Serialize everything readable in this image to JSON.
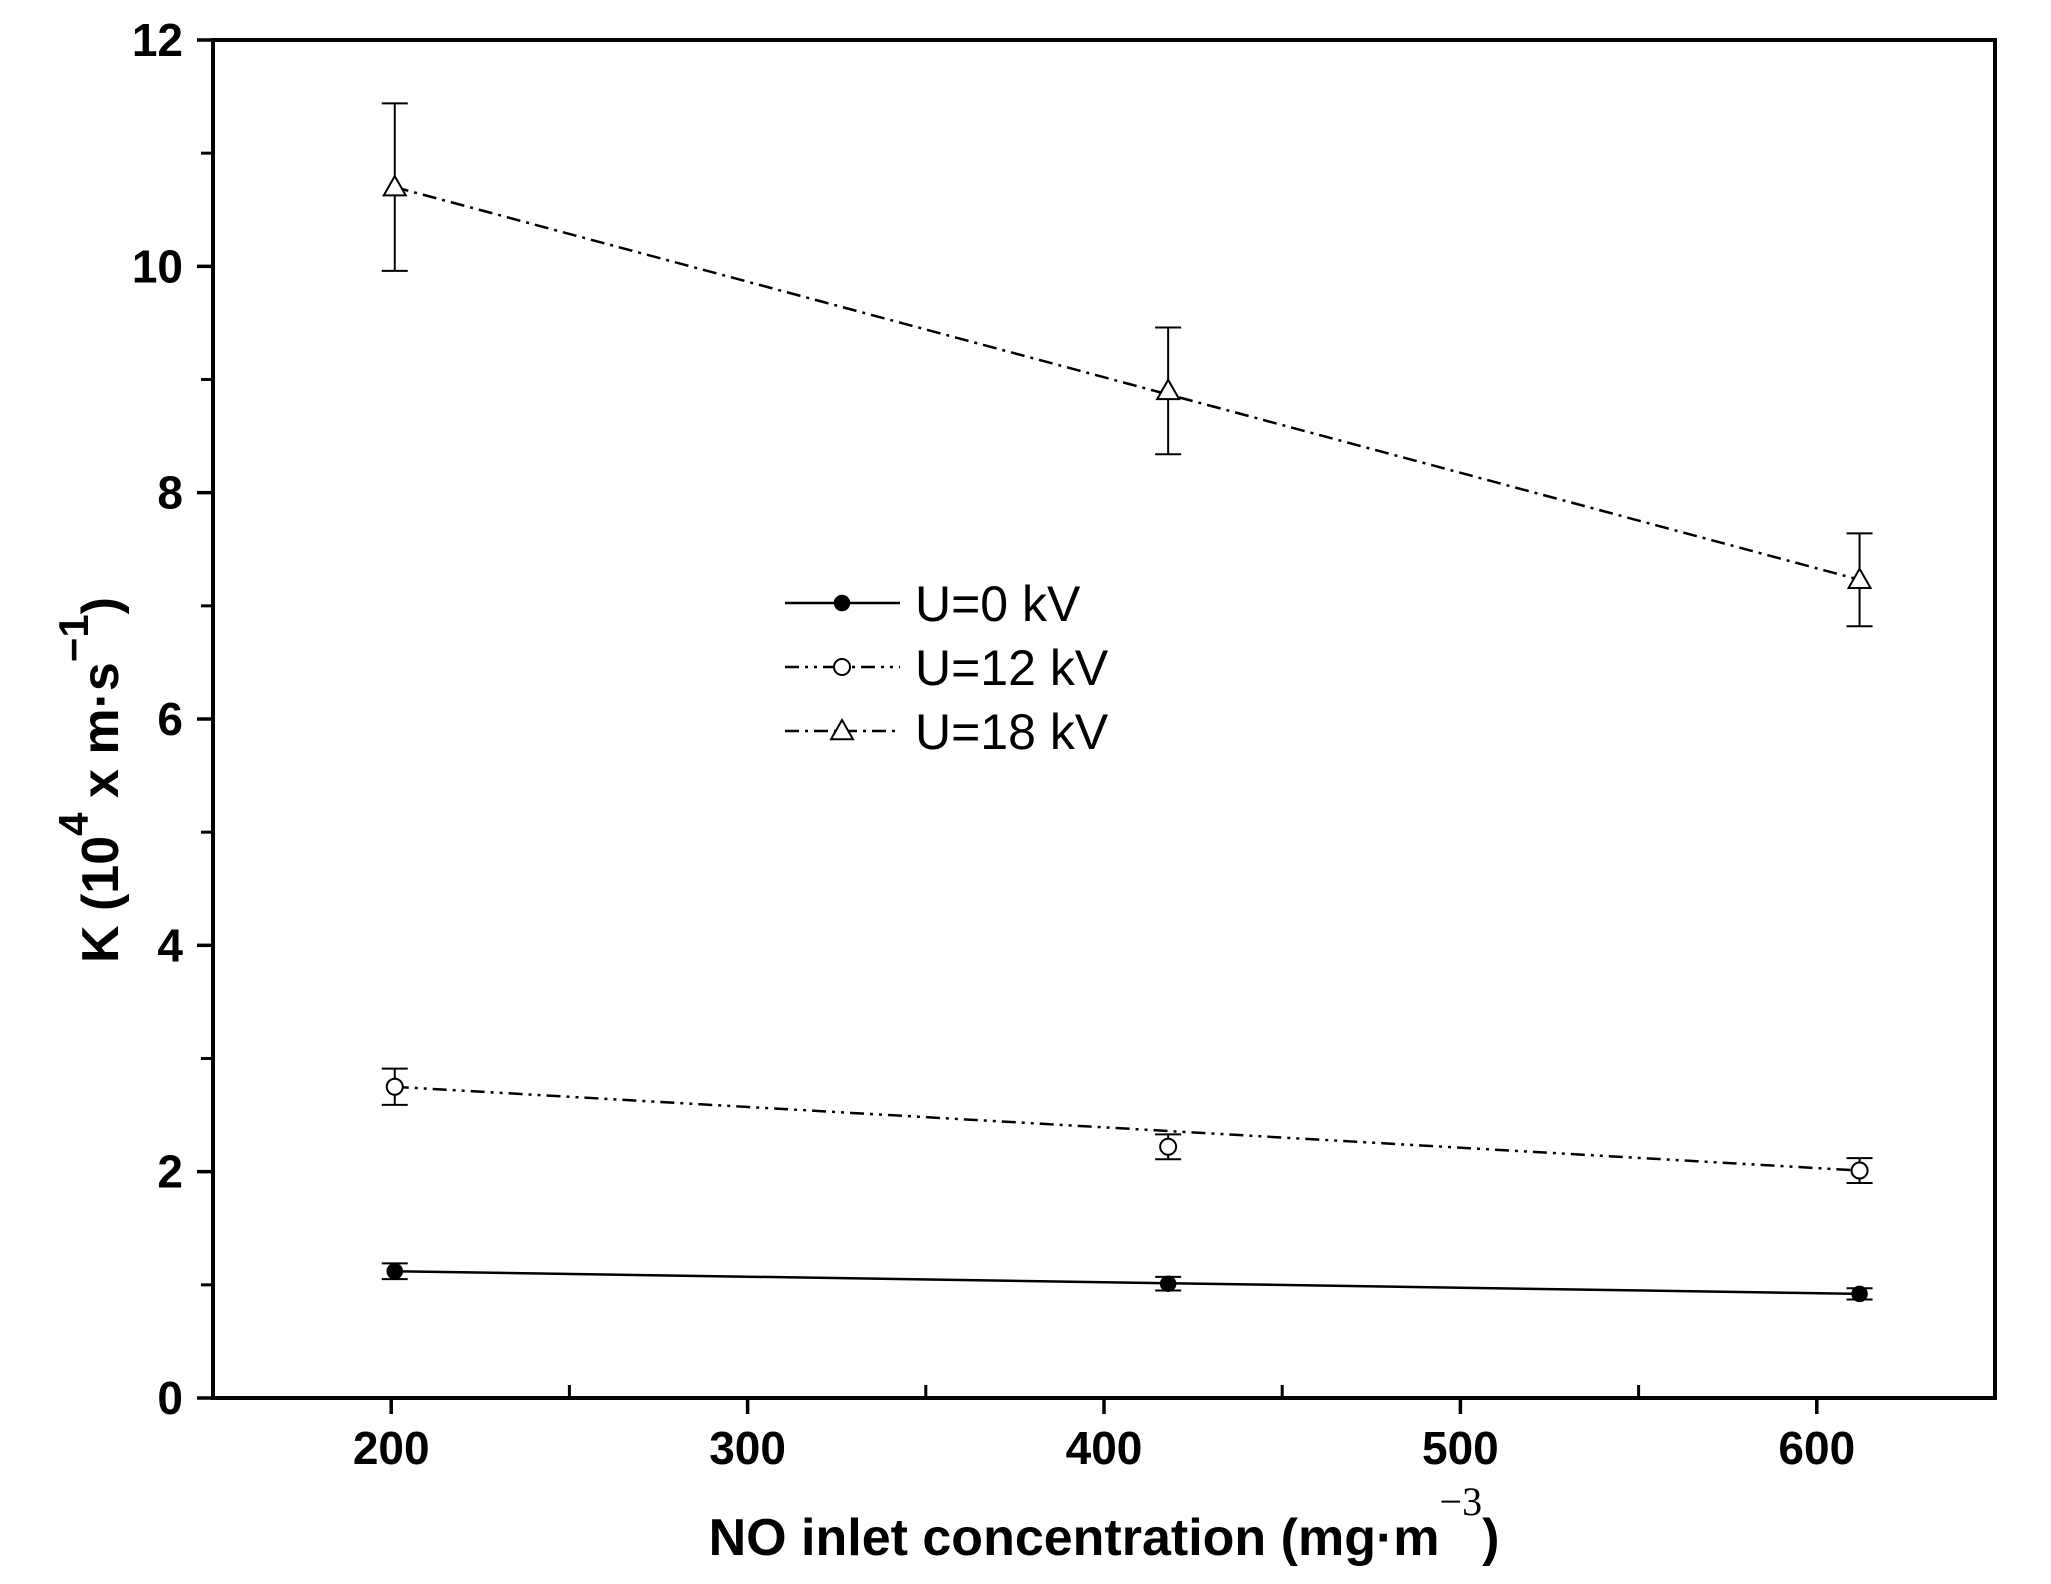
{
  "chart_data": {
    "type": "line",
    "title": "",
    "xlabel": {
      "main": "NO inlet concentration (mg·m",
      "superscript": "−3",
      "close": ")"
    },
    "ylabel": {
      "main": "K (10",
      "superscript": "4",
      "middle": " x m·s",
      "superscript2": "−1",
      "close": ")"
    },
    "xlim": [
      150,
      650
    ],
    "ylim": [
      0,
      12
    ],
    "x_ticks": [
      200,
      300,
      400,
      500,
      600
    ],
    "x_tick_labels": [
      "200",
      "300",
      "400",
      "500",
      "600"
    ],
    "y_ticks": [
      0,
      2,
      4,
      6,
      8,
      10,
      12
    ],
    "y_tick_labels": [
      "0",
      "2",
      "4",
      "6",
      "8",
      "10",
      "12"
    ],
    "grid": false,
    "legend_position": "center",
    "series": [
      {
        "name": "U=0 kV",
        "marker": "filled-circle",
        "line_style": "solid",
        "x": [
          201,
          418,
          612
        ],
        "y": [
          1.12,
          1.01,
          0.92
        ],
        "error": [
          0.07,
          0.06,
          0.05
        ],
        "fit": [
          1.12,
          0.92
        ]
      },
      {
        "name": "U=12 kV",
        "marker": "open-circle",
        "line_style": "dash-dot-dot",
        "x": [
          201,
          418,
          612
        ],
        "y": [
          2.75,
          2.22,
          2.01
        ],
        "error": [
          0.16,
          0.11,
          0.11
        ],
        "fit": [
          2.75,
          2.01
        ]
      },
      {
        "name": "U=18 kV",
        "marker": "open-triangle",
        "line_style": "dash-dot",
        "x": [
          201,
          418,
          612
        ],
        "y": [
          10.7,
          8.9,
          7.23
        ],
        "error": [
          0.74,
          0.56,
          0.41
        ],
        "fit": [
          10.7,
          7.23
        ]
      }
    ]
  }
}
